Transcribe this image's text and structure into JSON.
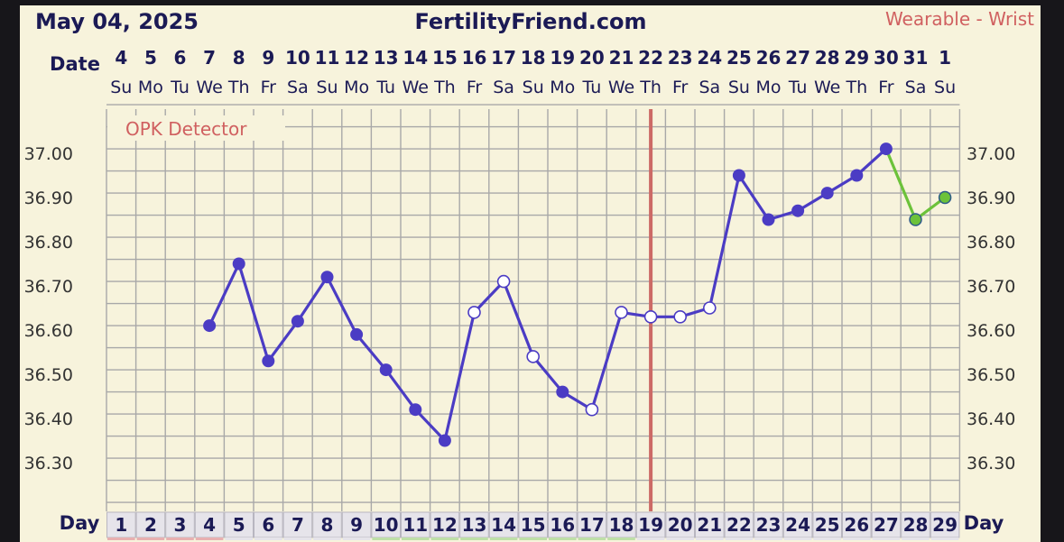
{
  "header": {
    "date_title": "May 04, 2025",
    "site_title": "FertilityFriend.com",
    "device_label": "Wearable - Wrist"
  },
  "labels": {
    "date_row_label": "Date",
    "day_row_label_left": "Day",
    "day_row_label_right": "Day",
    "opk_label": "OPK Detector"
  },
  "colors": {
    "temp_line": "#4b3cc4",
    "recent_line": "#6cc23a",
    "coverline": "#cc6a66",
    "grid": "#a8a8a8",
    "background": "#f7f3dc",
    "header_text": "#1b1a55",
    "device_text": "#d06060"
  },
  "chart_data": {
    "type": "line",
    "dates": [
      "4",
      "5",
      "6",
      "7",
      "8",
      "9",
      "10",
      "11",
      "12",
      "13",
      "14",
      "15",
      "16",
      "17",
      "18",
      "19",
      "20",
      "21",
      "22",
      "23",
      "24",
      "25",
      "26",
      "27",
      "28",
      "29",
      "30",
      "31",
      "1"
    ],
    "weekdays": [
      "Su",
      "Mo",
      "Tu",
      "We",
      "Th",
      "Fr",
      "Sa",
      "Su",
      "Mo",
      "Tu",
      "We",
      "Th",
      "Fr",
      "Sa",
      "Su",
      "Mo",
      "Tu",
      "We",
      "Th",
      "Fr",
      "Sa",
      "Su",
      "Mo",
      "Tu",
      "We",
      "Th",
      "Fr",
      "Sa",
      "Su"
    ],
    "cycle_days": [
      "1",
      "2",
      "3",
      "4",
      "5",
      "6",
      "7",
      "8",
      "9",
      "10",
      "11",
      "12",
      "13",
      "14",
      "15",
      "16",
      "17",
      "18",
      "19",
      "20",
      "21",
      "22",
      "23",
      "24",
      "25",
      "26",
      "27",
      "28",
      "29"
    ],
    "y_ticks": [
      "37.00",
      "36.90",
      "36.80",
      "36.70",
      "36.60",
      "36.50",
      "36.40",
      "36.30"
    ],
    "ylim": [
      36.21,
      37.11
    ],
    "ovulation_day": 19,
    "series": [
      {
        "type": "temperature",
        "points": [
          {
            "day": 4,
            "temp": 36.61,
            "open": false
          },
          {
            "day": 5,
            "temp": 36.75,
            "open": false
          },
          {
            "day": 6,
            "temp": 36.53,
            "open": false
          },
          {
            "day": 7,
            "temp": 36.62,
            "open": false
          },
          {
            "day": 8,
            "temp": 36.72,
            "open": false
          },
          {
            "day": 9,
            "temp": 36.59,
            "open": false
          },
          {
            "day": 10,
            "temp": 36.51,
            "open": false
          },
          {
            "day": 11,
            "temp": 36.42,
            "open": false
          },
          {
            "day": 12,
            "temp": 36.35,
            "open": false
          },
          {
            "day": 13,
            "temp": 36.64,
            "open": true
          },
          {
            "day": 14,
            "temp": 36.71,
            "open": true
          },
          {
            "day": 15,
            "temp": 36.54,
            "open": true
          },
          {
            "day": 16,
            "temp": 36.46,
            "open": false
          },
          {
            "day": 17,
            "temp": 36.42,
            "open": true
          },
          {
            "day": 18,
            "temp": 36.64,
            "open": true
          },
          {
            "day": 19,
            "temp": 36.63,
            "open": true
          },
          {
            "day": 20,
            "temp": 36.63,
            "open": true
          },
          {
            "day": 21,
            "temp": 36.65,
            "open": true
          },
          {
            "day": 22,
            "temp": 36.95,
            "open": false
          },
          {
            "day": 23,
            "temp": 36.85,
            "open": false
          },
          {
            "day": 24,
            "temp": 36.87,
            "open": false
          },
          {
            "day": 25,
            "temp": 36.91,
            "open": false
          },
          {
            "day": 26,
            "temp": 36.95,
            "open": false
          },
          {
            "day": 27,
            "temp": 37.01,
            "open": false
          }
        ]
      },
      {
        "type": "recent",
        "points": [
          {
            "day": 27,
            "temp": 37.01
          },
          {
            "day": 28,
            "temp": 36.85
          },
          {
            "day": 29,
            "temp": 36.9
          }
        ]
      }
    ],
    "grid": true
  }
}
